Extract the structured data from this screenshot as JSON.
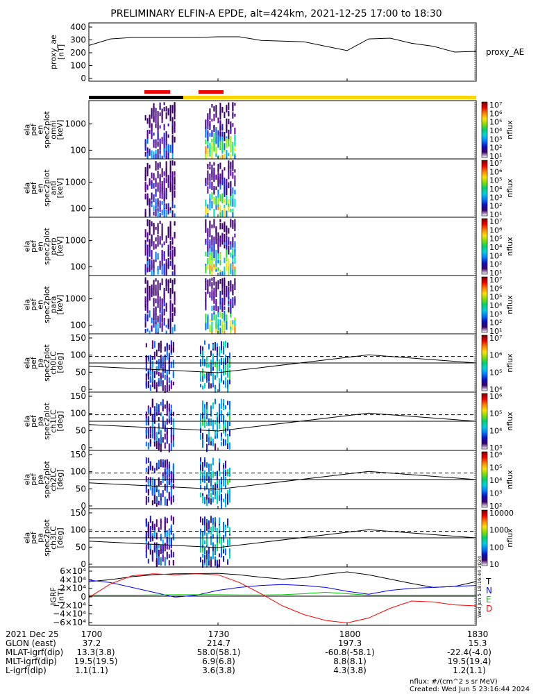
{
  "title": "PRELIMINARY ELFIN-A EPDE, alt=424km, 2021-12-25 17:00 to 18:30",
  "panels": [
    {
      "ylabel": [
        "proxy_ae",
        "[nT]"
      ],
      "right_label": "proxy_AE",
      "yticks": [
        "400",
        "300",
        "200",
        "100",
        "0"
      ]
    },
    {
      "ylabel": [
        "ela",
        "pef",
        "en",
        "spec2plot",
        "omni",
        "[keV]"
      ],
      "yticks": [
        "1000",
        "100"
      ],
      "cb_label": "nflux"
    },
    {
      "ylabel": [
        "ela",
        "pef",
        "en",
        "spec2plot",
        "anti",
        "[keV]"
      ],
      "yticks": [
        "1000",
        "100"
      ],
      "cb_label": "nflux"
    },
    {
      "ylabel": [
        "ela",
        "pef",
        "en",
        "spec2plot",
        "perp",
        "[keV]"
      ],
      "yticks": [
        "1000",
        "100"
      ],
      "cb_label": "nflux"
    },
    {
      "ylabel": [
        "ela",
        "pef",
        "en",
        "spec2plot",
        "para",
        "[keV]"
      ],
      "yticks": [
        "1000",
        "100"
      ],
      "cb_label": "nflux"
    },
    {
      "ylabel": [
        "ela",
        "pef",
        "pa",
        "spec2plot",
        "ch0LC",
        "[deg]"
      ],
      "yticks": [
        "150",
        "100",
        "50",
        "0"
      ],
      "cb_label": "nflux"
    },
    {
      "ylabel": [
        "ela",
        "pef",
        "pa",
        "spec2plot",
        "ch1LC",
        "[deg]"
      ],
      "yticks": [
        "150",
        "100",
        "50",
        "0"
      ],
      "cb_label": "nflux"
    },
    {
      "ylabel": [
        "ela",
        "pef",
        "pa",
        "spec2plot",
        "ch2LC",
        "[deg]"
      ],
      "yticks": [
        "150",
        "100",
        "50",
        "0"
      ],
      "cb_label": "nflux"
    },
    {
      "ylabel": [
        "ela",
        "pef",
        "pa",
        "spec2plot",
        "ch3LC",
        "[deg]"
      ],
      "yticks": [
        "150",
        "100",
        "50",
        "0"
      ],
      "cb_label": "nflux"
    },
    {
      "ylabel": [
        "IGRF",
        "[nT]"
      ],
      "yticks": [
        "6×10⁴",
        "4×10⁴",
        "2×10⁴",
        "0",
        "−2×10⁴",
        "−4×10⁴",
        "−6×10⁴"
      ]
    }
  ],
  "colorbar_ticks": [
    [
      "10⁷",
      "10⁶",
      "10⁵",
      "10⁴",
      "10³",
      "10²",
      "10¹"
    ],
    [
      "10⁷",
      "10⁶",
      "10⁵",
      "10⁴",
      "10³",
      "10²",
      "10¹"
    ],
    [
      "10⁷",
      "10⁶",
      "10⁵",
      "10⁴",
      "10³",
      "10²",
      "10¹"
    ],
    [
      "10⁷",
      "10⁶",
      "10⁵",
      "10⁴",
      "10³",
      "10²",
      "10¹"
    ],
    [
      "10⁷",
      "10⁶",
      "10⁵",
      "10⁴"
    ],
    [
      "10⁶",
      "10⁵",
      "10⁴",
      "10³"
    ],
    [
      "10⁶",
      "10⁵",
      "10⁴",
      "10³",
      "10²"
    ],
    [
      "10000",
      "1000",
      "100",
      "10"
    ]
  ],
  "igrf_legend": [
    {
      "label": "T",
      "color": "#000000"
    },
    {
      "label": "N",
      "color": "#0000ff"
    },
    {
      "label": "E",
      "color": "#00cc00"
    },
    {
      "label": "D",
      "color": "#ff0000"
    }
  ],
  "info_table": {
    "columns": [
      "1700",
      "1730",
      "1800",
      "1830"
    ],
    "rows": [
      {
        "label": "2021 Dec 25",
        "values": [
          "1700",
          "1730",
          "1800",
          "1830"
        ]
      },
      {
        "label": "GLON (east)",
        "values": [
          "37.2",
          "214.7",
          "197.3",
          "15.3"
        ]
      },
      {
        "label": "MLAT-igrf(dip)",
        "values": [
          "13.3(3.8)",
          "58.0(58.1)",
          "-60.8(-58.1)",
          "-22.4(-4.0)"
        ]
      },
      {
        "label": "MLT-igrf(dip)",
        "values": [
          "19.5(19.5)",
          "6.9(6.8)",
          "8.8(8.1)",
          "19.5(19.4)"
        ]
      },
      {
        "label": "L-igrf(dip)",
        "values": [
          "1.1(1.1)",
          "3.6(3.8)",
          "4.3(3.8)",
          "1.2(1.1)"
        ]
      }
    ]
  },
  "footer": {
    "units": "nflux: #/(cm^2 s sr MeV)",
    "created": "Created: Wed Jun  5 23:16:44 2024",
    "side_stamp": "Wed Jun 5 18:16:44 2024"
  },
  "chart_data": [
    {
      "type": "line",
      "name": "proxy_AE",
      "ylabel": "proxy_ae [nT]",
      "ylim": [
        0,
        400
      ],
      "x": [
        "17:00",
        "17:05",
        "17:10",
        "17:15",
        "17:20",
        "17:25",
        "17:30",
        "17:35",
        "17:40",
        "17:45",
        "17:50",
        "17:55",
        "18:00",
        "18:05",
        "18:10",
        "18:15",
        "18:20",
        "18:25",
        "18:30"
      ],
      "values": [
        245,
        290,
        300,
        300,
        300,
        300,
        305,
        305,
        280,
        275,
        270,
        240,
        210,
        290,
        295,
        260,
        240,
        200,
        205
      ]
    },
    {
      "type": "heatmap",
      "name": "en omni",
      "ylabel": "[keV]",
      "yscale": "log",
      "zscale": "log",
      "zrange": [
        "1e1",
        "1e7"
      ],
      "active_intervals": [
        [
          "17:13",
          "17:20"
        ],
        [
          "17:27",
          "17:34"
        ]
      ]
    },
    {
      "type": "heatmap",
      "name": "en anti",
      "ylabel": "[keV]",
      "yscale": "log",
      "zscale": "log",
      "zrange": [
        "1e1",
        "1e7"
      ],
      "active_intervals": [
        [
          "17:13",
          "17:20"
        ],
        [
          "17:27",
          "17:34"
        ]
      ]
    },
    {
      "type": "heatmap",
      "name": "en perp",
      "ylabel": "[keV]",
      "yscale": "log",
      "zscale": "log",
      "zrange": [
        "1e1",
        "1e7"
      ],
      "active_intervals": [
        [
          "17:13",
          "17:20"
        ],
        [
          "17:27",
          "17:34"
        ]
      ]
    },
    {
      "type": "heatmap",
      "name": "en para",
      "ylabel": "[keV]",
      "yscale": "log",
      "zscale": "log",
      "zrange": [
        "1e1",
        "1e7"
      ],
      "active_intervals": [
        [
          "17:13",
          "17:20"
        ],
        [
          "17:27",
          "17:34"
        ]
      ]
    },
    {
      "type": "heatmap",
      "name": "pa ch0LC",
      "ylabel": "[deg]",
      "ylim": [
        0,
        180
      ],
      "lc_line_x": [
        "17:00",
        "17:30",
        "18:05",
        "18:30"
      ],
      "lc_line_y": [
        80,
        60,
        115,
        90
      ],
      "blc_dashed": 110,
      "blc_solid": 90
    },
    {
      "type": "heatmap",
      "name": "pa ch1LC",
      "ylabel": "[deg]",
      "ylim": [
        0,
        180
      ],
      "lc_line_x": [
        "17:00",
        "17:30",
        "18:05",
        "18:30"
      ],
      "lc_line_y": [
        80,
        60,
        115,
        90
      ],
      "blc_dashed": 110,
      "blc_solid": 90
    },
    {
      "type": "heatmap",
      "name": "pa ch2LC",
      "ylabel": "[deg]",
      "ylim": [
        0,
        180
      ],
      "lc_line_x": [
        "17:00",
        "17:30",
        "18:05",
        "18:30"
      ],
      "lc_line_y": [
        80,
        60,
        115,
        90
      ],
      "blc_dashed": 110,
      "blc_solid": 90
    },
    {
      "type": "heatmap",
      "name": "pa ch3LC",
      "ylabel": "[deg]",
      "ylim": [
        0,
        180
      ],
      "lc_line_x": [
        "17:00",
        "17:30",
        "18:05",
        "18:30"
      ],
      "lc_line_y": [
        80,
        60,
        115,
        90
      ],
      "blc_dashed": 110,
      "blc_solid": 90
    },
    {
      "type": "line",
      "name": "IGRF",
      "ylabel": "IGRF [nT]",
      "ylim": [
        -60000,
        60000
      ],
      "x": [
        "17:00",
        "17:05",
        "17:10",
        "17:15",
        "17:20",
        "17:25",
        "17:30",
        "17:35",
        "17:40",
        "17:45",
        "17:50",
        "17:55",
        "18:00",
        "18:05",
        "18:10",
        "18:15",
        "18:20",
        "18:25",
        "18:30"
      ],
      "series": [
        {
          "name": "T",
          "values": [
            30000,
            34000,
            40000,
            44000,
            46000,
            46500,
            47000,
            44000,
            39000,
            35000,
            38000,
            45000,
            50000,
            44000,
            35000,
            26000,
            18000,
            20000,
            30000
          ]
        },
        {
          "name": "N",
          "values": [
            33000,
            28000,
            18000,
            8000,
            -2000,
            2000,
            12000,
            18000,
            22000,
            24000,
            22000,
            18000,
            10000,
            4000,
            12000,
            16000,
            18000,
            20000,
            22000
          ]
        },
        {
          "name": "E",
          "values": [
            2000,
            2000,
            2000,
            2500,
            3000,
            3000,
            3000,
            2500,
            2500,
            3000,
            5000,
            8000,
            5000,
            2000,
            2000,
            2000,
            2000,
            2000,
            2000
          ]
        },
        {
          "name": "D",
          "values": [
            -3000,
            25000,
            42000,
            46000,
            44000,
            46000,
            44000,
            28000,
            5000,
            -20000,
            -38000,
            -50000,
            -55000,
            -45000,
            -25000,
            -10000,
            -12000,
            -18000,
            -20000
          ]
        }
      ]
    }
  ]
}
